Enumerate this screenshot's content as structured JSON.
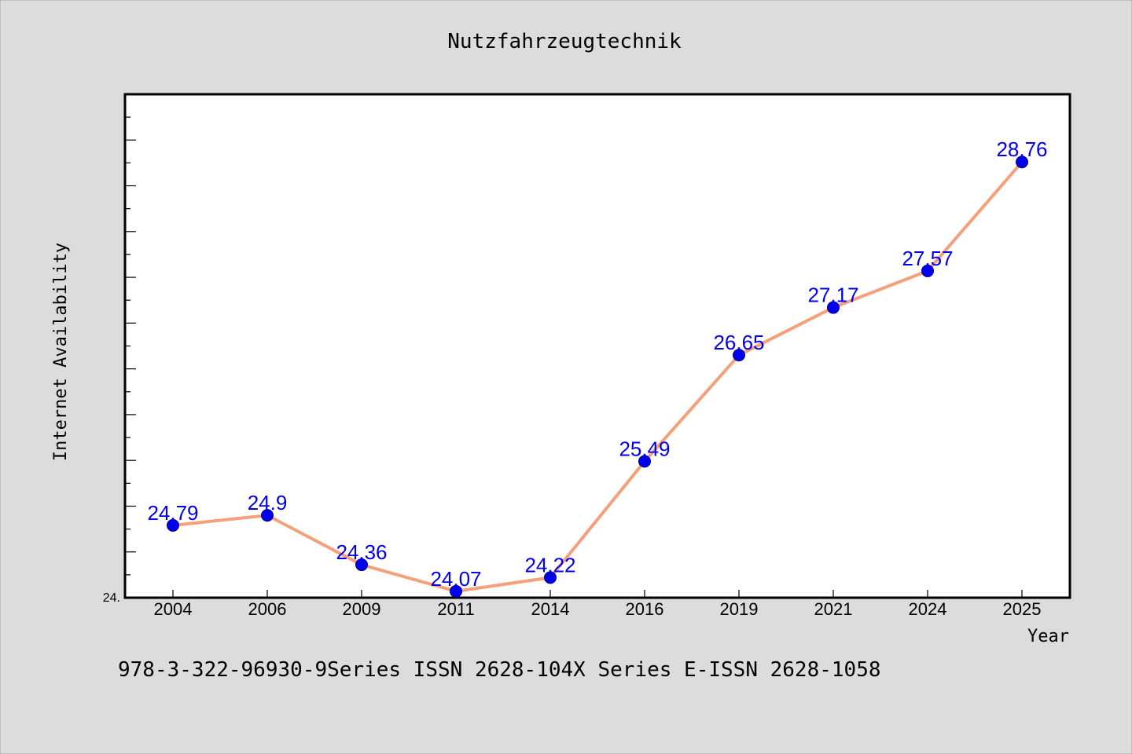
{
  "chart_data": {
    "type": "line",
    "title": "Nutzfahrzeugtechnik",
    "xlabel": "Year",
    "ylabel": "Internet Availability",
    "categories": [
      "2004",
      "2006",
      "2009",
      "2011",
      "2014",
      "2016",
      "2019",
      "2021",
      "2024",
      "2025"
    ],
    "series": [
      {
        "values": [
          24.79,
          24.9,
          24.36,
          24.07,
          24.22,
          25.49,
          26.65,
          27.17,
          27.57,
          28.76
        ],
        "data_labels": [
          "24.79",
          "24.9",
          "24.36",
          "24.07",
          "24.22",
          "25.49",
          "26.65",
          "27.17",
          "27.57",
          "28.76"
        ],
        "line_color": "#f4a07a",
        "marker_color": "#0000ee"
      }
    ],
    "ylim": [
      24.0,
      29.5
    ],
    "y_tick_label": "24.",
    "grid": false,
    "legend": "none"
  },
  "footer": {
    "text": "978-3-322-96930-9Series ISSN 2628-104X Series E-ISSN 2628-1058"
  }
}
